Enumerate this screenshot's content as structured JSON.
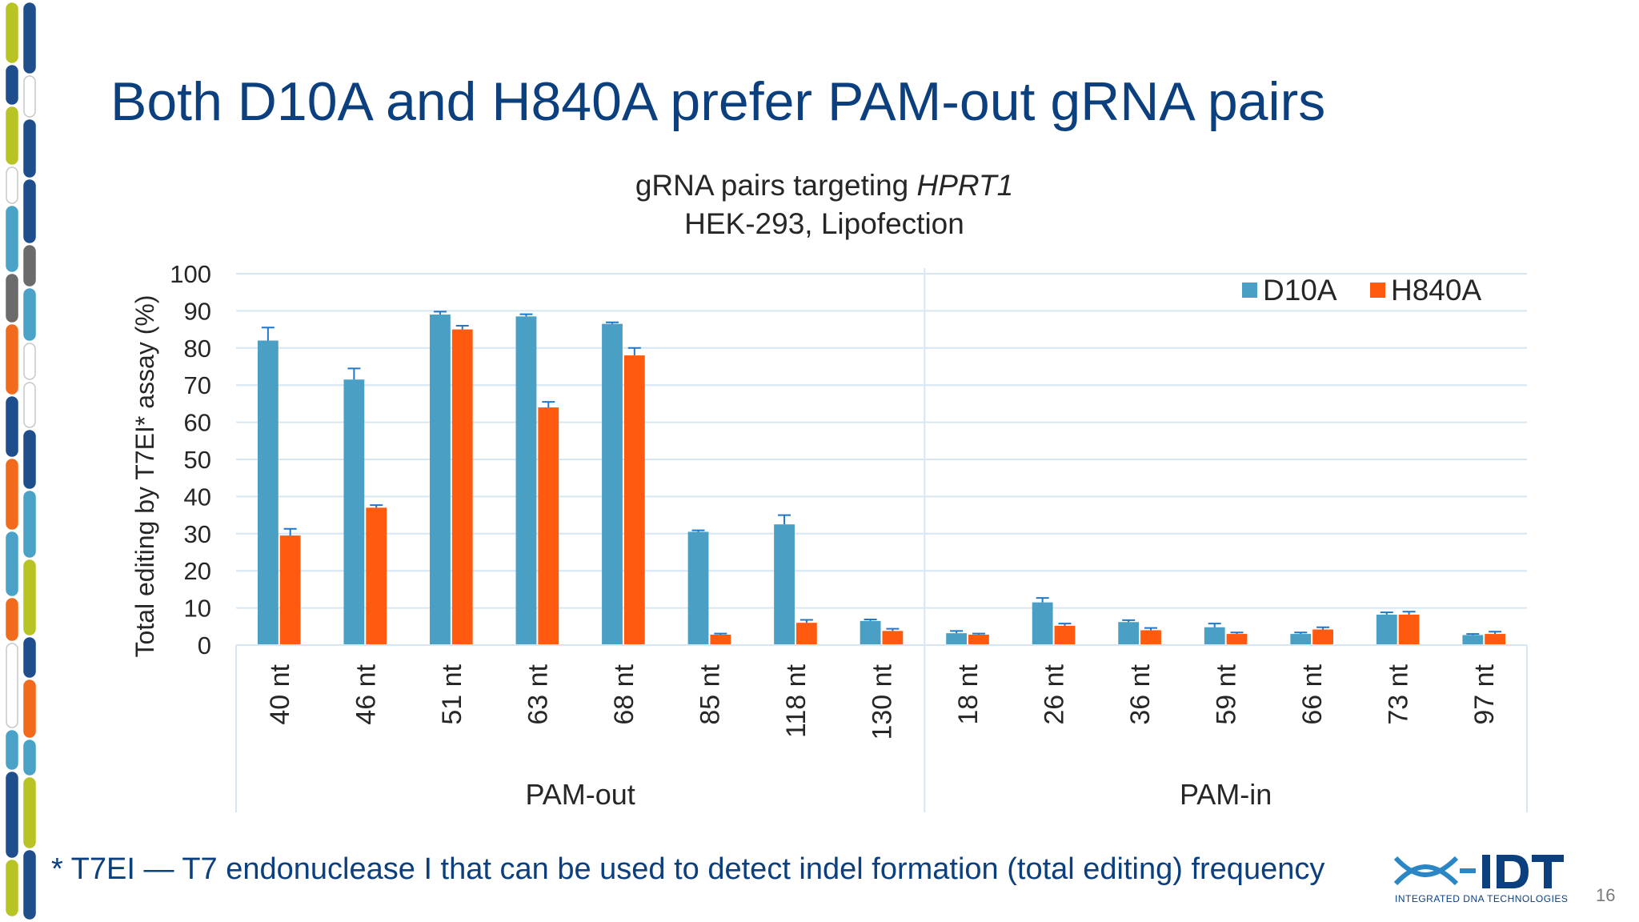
{
  "slide": {
    "title": "Both D10A and H840A prefer PAM-out gRNA pairs",
    "footnote": "* T7EI — T7 endonuclease I that can be used to detect indel formation (total editing) frequency",
    "page_number": "16",
    "logo": {
      "text": "IDT",
      "subtext": "INTEGRATED DNA TECHNOLOGIES"
    },
    "colors": {
      "title": "#0b3f7e",
      "d10a": "#4a9fc4",
      "h840a": "#ff5a0f",
      "error_bar": "#1f77c9",
      "grid": "#d6e6f2"
    }
  },
  "chart_data": {
    "type": "bar",
    "title_line1_prefix": "gRNA pairs targeting ",
    "title_line1_italic": "HPRT1",
    "title_line2": "HEK-293, Lipofection",
    "ylabel": "Total editing by T7EI* assay (%)",
    "ylim": [
      0,
      100
    ],
    "yticks": [
      0,
      10,
      20,
      30,
      40,
      50,
      60,
      70,
      80,
      90,
      100
    ],
    "grid": true,
    "legend_position": "top-right",
    "categories": [
      "40 nt",
      "46 nt",
      "51 nt",
      "63 nt",
      "68 nt",
      "85 nt",
      "118 nt",
      "130 nt",
      "18 nt",
      "26 nt",
      "36 nt",
      "59 nt",
      "66 nt",
      "73 nt",
      "97 nt"
    ],
    "groups": [
      {
        "label": "PAM-out",
        "count": 8
      },
      {
        "label": "PAM-in",
        "count": 7
      }
    ],
    "series": [
      {
        "name": "D10A",
        "color": "#4a9fc4",
        "values": [
          82,
          71.5,
          89,
          88.5,
          86.5,
          30.5,
          32.5,
          6.5,
          3.2,
          11.5,
          6.2,
          4.8,
          3,
          8.2,
          2.7
        ],
        "errors": [
          3.5,
          3,
          0.8,
          0.6,
          0.4,
          0.4,
          2.5,
          0.4,
          0.6,
          1.2,
          0.5,
          1,
          0.4,
          0.6,
          0.3
        ]
      },
      {
        "name": "H840A",
        "color": "#ff5a0f",
        "values": [
          29.5,
          37,
          85,
          64,
          78,
          2.8,
          6,
          3.8,
          2.8,
          5.2,
          4,
          3,
          4.2,
          8.2,
          3
        ],
        "errors": [
          1.8,
          0.7,
          1,
          1.5,
          2,
          0.3,
          0.8,
          0.6,
          0.3,
          0.6,
          0.6,
          0.4,
          0.6,
          0.8,
          0.6
        ]
      }
    ]
  }
}
